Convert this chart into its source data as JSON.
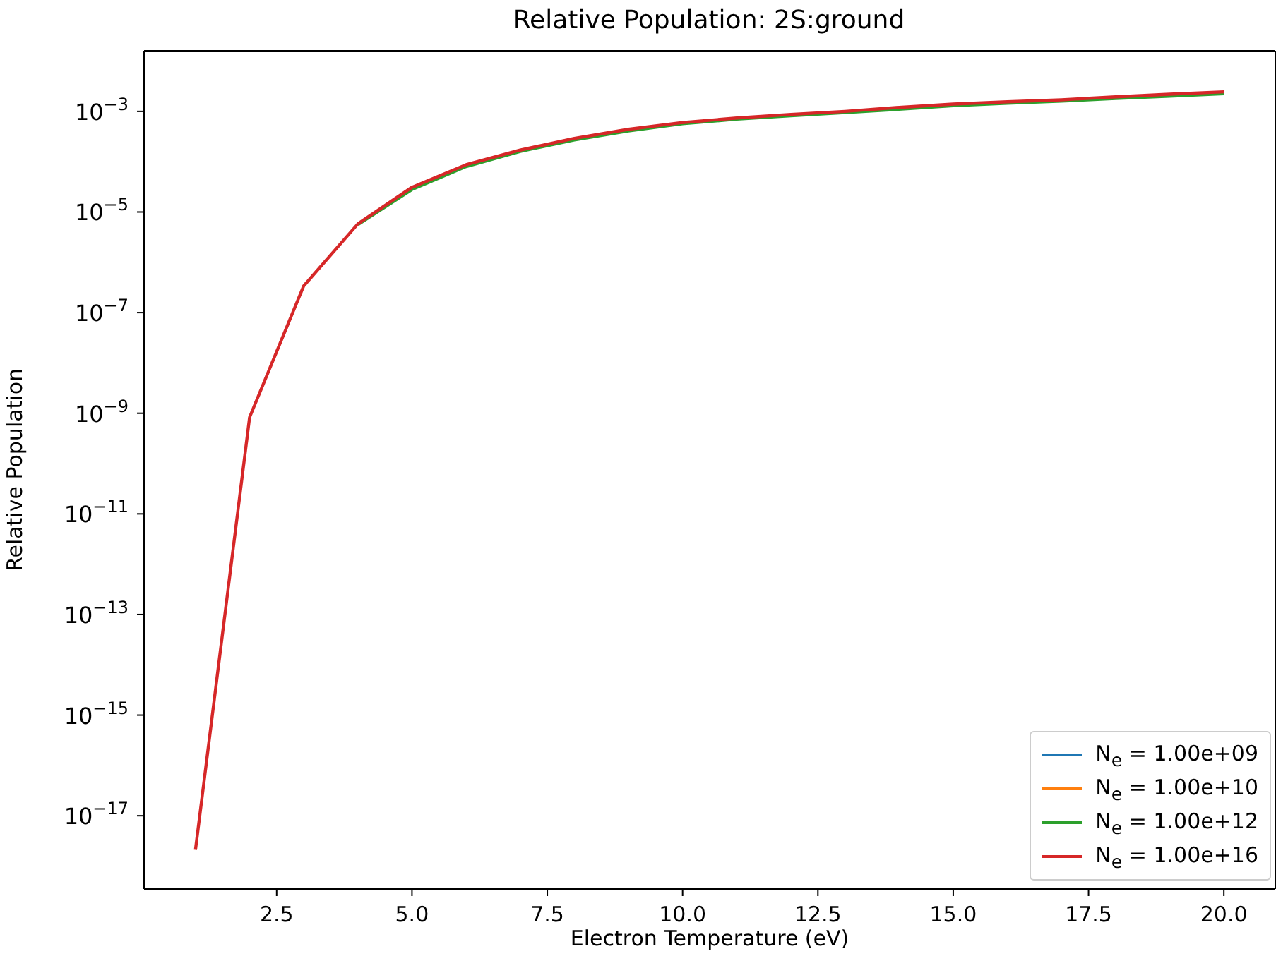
{
  "chart_data": {
    "type": "line",
    "title": "Relative Population: 2S:ground",
    "xlabel": "Electron Temperature (eV)",
    "ylabel": "Relative Population",
    "x": [
      1,
      2,
      3,
      4,
      5,
      6,
      7,
      8,
      9,
      10,
      11,
      12,
      13,
      14,
      15,
      16,
      17,
      18,
      19,
      20
    ],
    "series": [
      {
        "name": "N$_{e}$ = 1.00e+09",
        "color": "#1f77b4",
        "values": [
          null,
          null,
          null,
          null,
          null,
          null,
          null,
          null,
          null,
          null,
          null,
          null,
          null,
          null,
          null,
          null,
          null,
          null,
          null,
          null
        ]
      },
      {
        "name": "N$_{e}$ = 1.00e+10",
        "color": "#ff7f0e",
        "values": [
          null,
          null,
          null,
          null,
          null,
          null,
          null,
          null,
          null,
          null,
          null,
          null,
          null,
          null,
          null,
          null,
          null,
          null,
          null,
          null
        ]
      },
      {
        "name": "N$_{e}$ = 1.00e+12",
        "color": "#2ca02c",
        "values": [
          null,
          null,
          null,
          5.6e-06,
          2.8e-05,
          8e-05,
          0.00016,
          0.00027,
          0.00041,
          0.00057,
          0.0007,
          0.00082,
          0.00095,
          0.0011,
          0.0013,
          0.00145,
          0.0016,
          0.0018,
          0.002,
          0.00225
        ]
      },
      {
        "name": "N$_{e}$ = 1.00e+16",
        "color": "#d62728",
        "values": [
          2.1e-18,
          8.3e-10,
          3.4e-07,
          5.8e-06,
          3.1e-05,
          8.7e-05,
          0.00017,
          0.00029,
          0.00044,
          0.0006,
          0.00074,
          0.00087,
          0.001,
          0.0012,
          0.0014,
          0.00155,
          0.0017,
          0.00195,
          0.0022,
          0.00245
        ]
      }
    ],
    "log": "y",
    "xlim": [
      0.05,
      20.95
    ],
    "ylim": [
      3.5e-19,
      0.016
    ],
    "xticks": [
      {
        "value": 2.5,
        "label": "2.5"
      },
      {
        "value": 5,
        "label": "5.0"
      },
      {
        "value": 7.5,
        "label": "7.5"
      },
      {
        "value": 10,
        "label": "10.0"
      },
      {
        "value": 12.5,
        "label": "12.5"
      },
      {
        "value": 15,
        "label": "15.0"
      },
      {
        "value": 17.5,
        "label": "17.5"
      },
      {
        "value": 20,
        "label": "20.0"
      }
    ],
    "yticks": [
      {
        "value": 1e-17,
        "label": "10$^{−17}$"
      },
      {
        "value": 1e-15,
        "label": "10$^{−15}$"
      },
      {
        "value": 1e-13,
        "label": "10$^{−13}$"
      },
      {
        "value": 1e-11,
        "label": "10$^{−11}$"
      },
      {
        "value": 1e-09,
        "label": "10$^{−9}$"
      },
      {
        "value": 1e-07,
        "label": "10$^{−7}$"
      },
      {
        "value": 1e-05,
        "label": "10$^{−5}$"
      },
      {
        "value": 0.001,
        "label": "10$^{−3}$"
      }
    ],
    "grid": false,
    "legend": "bottom right",
    "marker": "none",
    "line_style": "solid"
  }
}
